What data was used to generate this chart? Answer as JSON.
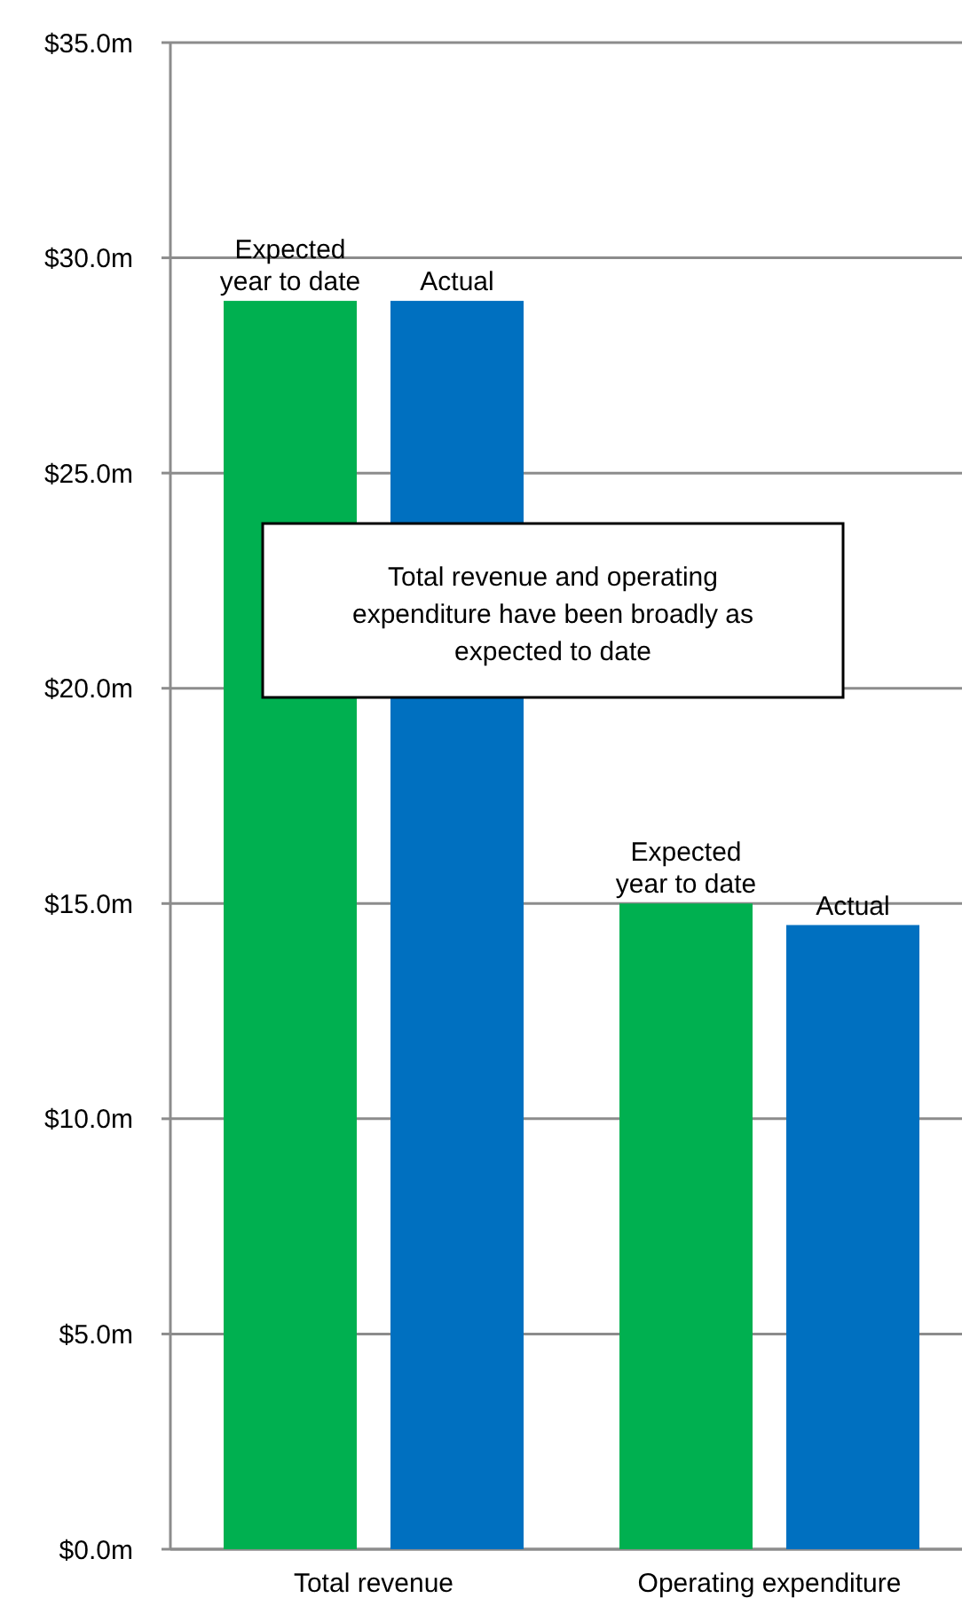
{
  "chart_data": {
    "type": "bar",
    "categories": [
      "Total revenue",
      "Operating expenditure"
    ],
    "series": [
      {
        "name": "Expected year to date",
        "color": "#00b050",
        "values": [
          29.0,
          15.0
        ]
      },
      {
        "name": "Actual",
        "color": "#0070c0",
        "values": [
          29.0,
          14.5
        ]
      }
    ],
    "ylim": [
      0,
      35
    ],
    "yticks": [
      {
        "value": 0,
        "label": "$0.0m"
      },
      {
        "value": 5,
        "label": "$5.0m"
      },
      {
        "value": 10,
        "label": "$10.0m"
      },
      {
        "value": 15,
        "label": "$15.0m"
      },
      {
        "value": 20,
        "label": "$20.0m"
      },
      {
        "value": 25,
        "label": "$25.0m"
      },
      {
        "value": 30,
        "label": "$30.0m"
      },
      {
        "value": 35,
        "label": "$35.0m"
      }
    ],
    "grid": "y",
    "annotations": [
      "Total revenue and operating expenditure have been broadly as expected to date"
    ]
  }
}
